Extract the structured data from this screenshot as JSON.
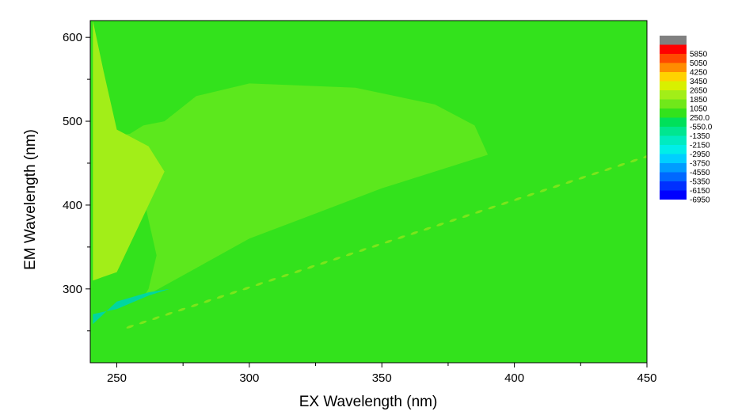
{
  "chart_data": {
    "type": "heatmap",
    "xlabel": "EX Wavelength (nm)",
    "ylabel": "EM Wavelength (nm)",
    "xlim": [
      240,
      450
    ],
    "ylim": [
      212,
      620
    ],
    "x_ticks": [
      250,
      300,
      350,
      400,
      450
    ],
    "y_ticks": [
      300,
      400,
      500,
      600
    ],
    "x_tick_labels": [
      "250",
      "300",
      "350",
      "400",
      "450"
    ],
    "y_tick_labels": [
      "300",
      "400",
      "500",
      "600"
    ],
    "background_level_color": "#33e21c",
    "regions": [
      {
        "name": "broad-emission-plateau",
        "color": "#5ce81d",
        "polygon": [
          [
            248,
            262
          ],
          [
            260,
            290
          ],
          [
            262,
            300
          ],
          [
            265,
            340
          ],
          [
            260,
            410
          ],
          [
            248,
            455
          ],
          [
            245,
            480
          ],
          [
            255,
            485
          ],
          [
            260,
            495
          ],
          [
            268,
            500
          ],
          [
            280,
            530
          ],
          [
            300,
            545
          ],
          [
            340,
            540
          ],
          [
            370,
            520
          ],
          [
            385,
            495
          ],
          [
            390,
            460
          ],
          [
            385,
            455
          ],
          [
            350,
            420
          ],
          [
            300,
            360
          ],
          [
            260,
            290
          ]
        ]
      },
      {
        "name": "left-edge-noise",
        "color": "#a2ee18",
        "polygon": [
          [
            241,
            310
          ],
          [
            250,
            320
          ],
          [
            256,
            360
          ],
          [
            262,
            400
          ],
          [
            268,
            440
          ],
          [
            262,
            470
          ],
          [
            250,
            490
          ],
          [
            245,
            560
          ],
          [
            241,
            620
          ]
        ]
      },
      {
        "name": "rayleigh-scatter-band",
        "color": "#00d6a0",
        "polygon": [
          [
            241,
            270
          ],
          [
            250,
            276
          ],
          [
            262,
            292
          ],
          [
            270,
            300
          ],
          [
            262,
            296
          ],
          [
            250,
            285
          ],
          [
            241,
            258
          ]
        ]
      }
    ],
    "scatter_line": {
      "x": [
        255,
        450
      ],
      "y": [
        255,
        458
      ],
      "color": "#7be51b"
    },
    "legend": {
      "placement": "right",
      "top_swatch_color": "#808080",
      "entries": [
        {
          "label": "5850",
          "color": "#ff0000"
        },
        {
          "label": "5050",
          "color": "#ff4a00"
        },
        {
          "label": "4250",
          "color": "#ff8c00"
        },
        {
          "label": "3450",
          "color": "#ffd200"
        },
        {
          "label": "2650",
          "color": "#d8f000"
        },
        {
          "label": "1850",
          "color": "#a2ee18"
        },
        {
          "label": "1050",
          "color": "#70e81a"
        },
        {
          "label": "250.0",
          "color": "#33e21c"
        },
        {
          "label": "-550.0",
          "color": "#00e05a"
        },
        {
          "label": "-1350",
          "color": "#00e690"
        },
        {
          "label": "-2150",
          "color": "#00ebc0"
        },
        {
          "label": "-2950",
          "color": "#00eee8"
        },
        {
          "label": "-3750",
          "color": "#00cfff"
        },
        {
          "label": "-4550",
          "color": "#009cff"
        },
        {
          "label": "-5350",
          "color": "#0068ff"
        },
        {
          "label": "-6150",
          "color": "#0030ff"
        },
        {
          "label": "-6950",
          "color": "#0000ff"
        }
      ]
    }
  }
}
